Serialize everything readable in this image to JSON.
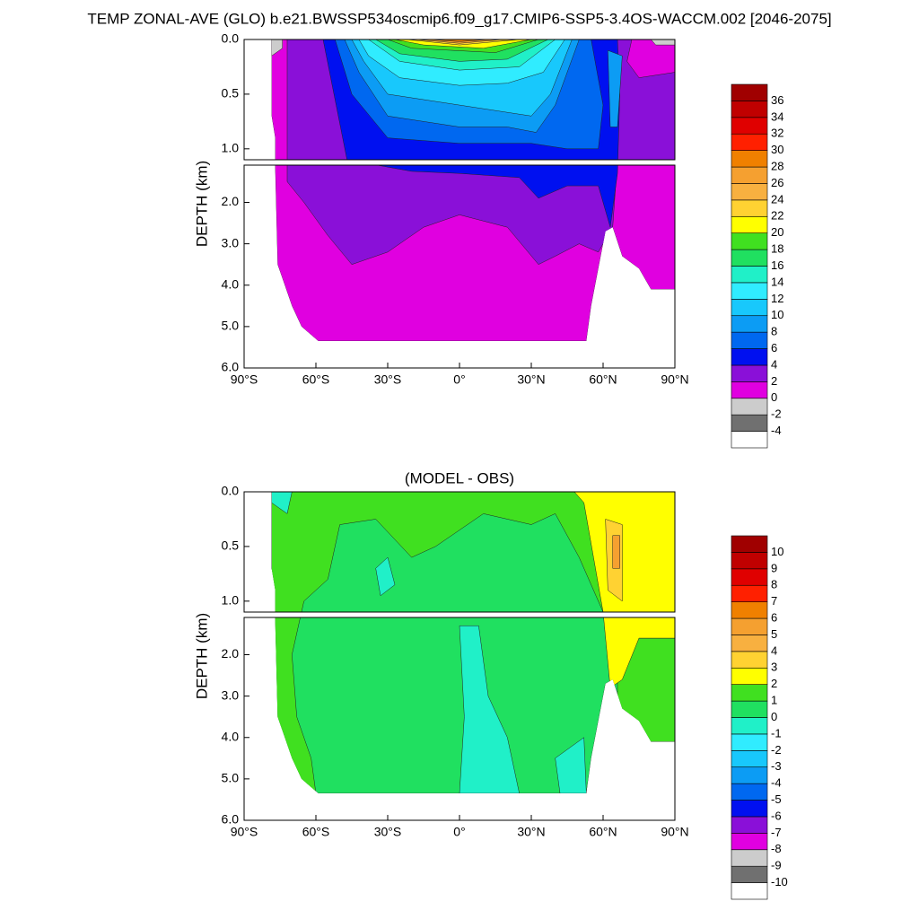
{
  "title": "TEMP ZONAL-AVE (GLO) b.e21.BWSSP534oscmip6.f09_g17.CMIP6-SSP5-3.4OS-WACCM.002 [2046-2075]",
  "chart_data": [
    {
      "type": "contour",
      "ylabel": "DEPTH (km)",
      "xlim": [
        -90,
        90
      ],
      "ylim": [
        0,
        6
      ],
      "ybreak": 1.1,
      "xticks": [
        {
          "value": -90,
          "label": "90°S"
        },
        {
          "value": -60,
          "label": "60°S"
        },
        {
          "value": -30,
          "label": "30°S"
        },
        {
          "value": 0,
          "label": "0°"
        },
        {
          "value": 30,
          "label": "30°N"
        },
        {
          "value": 60,
          "label": "60°N"
        },
        {
          "value": 90,
          "label": "90°N"
        }
      ],
      "yticks": [
        {
          "value": 0,
          "label": "0.0"
        },
        0.5,
        {
          "value": 1,
          "label": "1.0"
        },
        {
          "value": 2,
          "label": "2.0"
        },
        {
          "value": 3,
          "label": "3.0"
        },
        {
          "value": 4,
          "label": "4.0"
        },
        {
          "value": 5,
          "label": "5.0"
        },
        {
          "value": 6,
          "label": "6.0"
        }
      ],
      "levels": [
        -4,
        -2,
        0,
        2,
        4,
        6,
        8,
        10,
        12,
        14,
        16,
        18,
        20,
        22,
        24,
        26,
        28,
        30,
        32,
        34,
        36
      ],
      "colors": [
        "#ffffff",
        "#707070",
        "#cccccc",
        "#e000e0",
        "#8a10d8",
        "#0010f0",
        "#0068f0",
        "#0c9cf4",
        "#18c8fc",
        "#30ecff",
        "#20f0c8",
        "#20e060",
        "#40e020",
        "#ffff00",
        "#ffd232",
        "#f8b040",
        "#f5a030",
        "#f08000",
        "#ff2000",
        "#e00000",
        "#c00000",
        "#a00000"
      ]
    },
    {
      "type": "contour",
      "title": "(MODEL - OBS)",
      "ylabel": "DEPTH (km)",
      "xlim": [
        -90,
        90
      ],
      "ylim": [
        0,
        6
      ],
      "ybreak": 1.1,
      "xticks": [
        {
          "value": -90,
          "label": "90°S"
        },
        {
          "value": -60,
          "label": "60°S"
        },
        {
          "value": -30,
          "label": "30°S"
        },
        {
          "value": 0,
          "label": "0°"
        },
        {
          "value": 30,
          "label": "30°N"
        },
        {
          "value": 60,
          "label": "60°N"
        },
        {
          "value": 90,
          "label": "90°N"
        }
      ],
      "yticks": [
        {
          "value": 0,
          "label": "0.0"
        },
        0.5,
        {
          "value": 1,
          "label": "1.0"
        },
        {
          "value": 2,
          "label": "2.0"
        },
        {
          "value": 3,
          "label": "3.0"
        },
        {
          "value": 4,
          "label": "4.0"
        },
        {
          "value": 5,
          "label": "5.0"
        },
        {
          "value": 6,
          "label": "6.0"
        }
      ],
      "levels": [
        -10,
        -9,
        -8,
        -7,
        -6,
        -5,
        -4,
        -3,
        -2,
        -1,
        0,
        1,
        2,
        3,
        4,
        5,
        6,
        7,
        8,
        9,
        10
      ],
      "colors": [
        "#ffffff",
        "#707070",
        "#cccccc",
        "#e000e0",
        "#8a10d8",
        "#0010f0",
        "#0068f0",
        "#0c9cf4",
        "#18c8fc",
        "#30ecff",
        "#20f0c8",
        "#20e060",
        "#40e020",
        "#ffff00",
        "#ffd232",
        "#f8b040",
        "#f5a030",
        "#f08000",
        "#ff2000",
        "#e00000",
        "#c00000",
        "#a00000"
      ]
    }
  ]
}
